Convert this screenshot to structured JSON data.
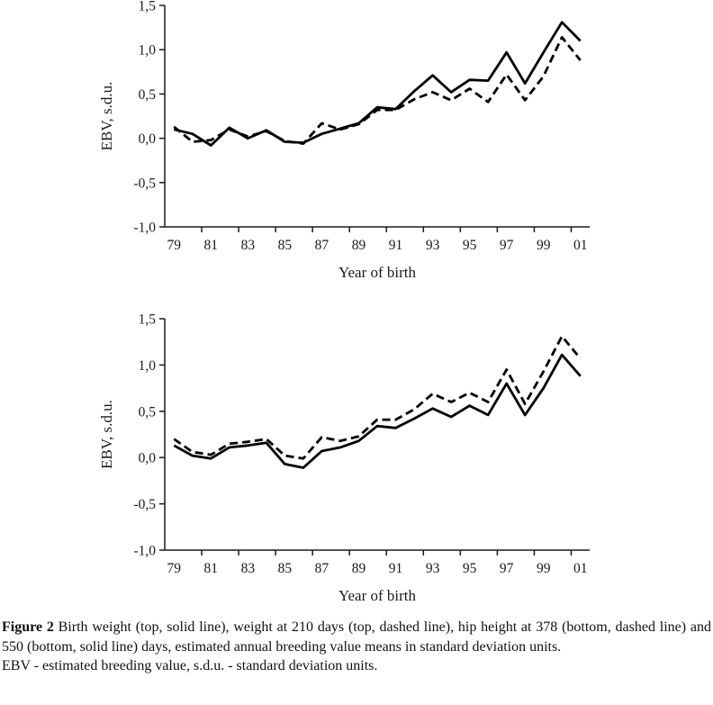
{
  "figure": {
    "caption_label": "Figure 2",
    "caption_text": "Birth weight (top, solid line), weight at 210 days (top, dashed line), hip height at 378 (bottom, dashed line) and 550 (bottom, solid line) days, estimated annual breeding value means in standard deviation units.",
    "footnote": "EBV - estimated breeding value, s.d.u. - standard deviation units."
  },
  "chart_data": [
    {
      "type": "line",
      "position": "top",
      "title": "",
      "xlabel": "Year of birth",
      "ylabel": "EBV, s.d.u.",
      "ylim": [
        -1.0,
        1.5
      ],
      "ytick_values": [
        1.5,
        1.0,
        0.5,
        0.0,
        -0.5,
        -1.0
      ],
      "ytick_labels": [
        "1,5",
        "1,0",
        "0,5",
        "0,0",
        "-0,5",
        "-1,0"
      ],
      "xtick_labels": [
        "79",
        "81",
        "83",
        "85",
        "87",
        "89",
        "91",
        "93",
        "95",
        "97",
        "99",
        "01"
      ],
      "x_years": [
        "79",
        "80",
        "81",
        "82",
        "83",
        "84",
        "85",
        "86",
        "87",
        "88",
        "89",
        "90",
        "91",
        "92",
        "93",
        "94",
        "95",
        "96",
        "97",
        "98",
        "99",
        "00",
        "01"
      ],
      "grid": false,
      "legend": false,
      "line_color": "#000000",
      "series": [
        {
          "name": "Weight at 210 days",
          "line_style": "dashed",
          "values": [
            0.13,
            -0.04,
            -0.02,
            0.1,
            0.02,
            0.08,
            -0.03,
            -0.06,
            0.17,
            0.1,
            0.16,
            0.32,
            0.32,
            0.44,
            0.52,
            0.43,
            0.56,
            0.41,
            0.72,
            0.43,
            0.7,
            1.14,
            0.88
          ]
        },
        {
          "name": "Birth weight",
          "line_style": "solid",
          "values": [
            0.1,
            0.05,
            -0.08,
            0.12,
            0.0,
            0.09,
            -0.04,
            -0.05,
            0.05,
            0.11,
            0.17,
            0.35,
            0.33,
            0.53,
            0.71,
            0.52,
            0.66,
            0.65,
            0.97,
            0.62,
            0.97,
            1.31,
            1.1
          ]
        }
      ]
    },
    {
      "type": "line",
      "position": "bottom",
      "title": "",
      "xlabel": "Year of birth",
      "ylabel": "EBV, s.d.u.",
      "ylim": [
        -1.0,
        1.5
      ],
      "ytick_values": [
        1.5,
        1.0,
        0.5,
        0.0,
        -0.5,
        -1.0
      ],
      "ytick_labels": [
        "1,5",
        "1,0",
        "0,5",
        "0,0",
        "-0,5",
        "-1,0"
      ],
      "xtick_labels": [
        "79",
        "81",
        "83",
        "85",
        "87",
        "89",
        "91",
        "93",
        "95",
        "97",
        "99",
        "01"
      ],
      "x_years": [
        "79",
        "80",
        "81",
        "82",
        "83",
        "84",
        "85",
        "86",
        "87",
        "88",
        "89",
        "90",
        "91",
        "92",
        "93",
        "94",
        "95",
        "96",
        "97",
        "98",
        "99",
        "00",
        "01"
      ],
      "grid": false,
      "legend": false,
      "line_color": "#000000",
      "series": [
        {
          "name": "Hip height at 550 days",
          "line_style": "solid",
          "values": [
            0.13,
            0.02,
            -0.01,
            0.11,
            0.13,
            0.16,
            -0.07,
            -0.11,
            0.07,
            0.11,
            0.18,
            0.34,
            0.32,
            0.42,
            0.53,
            0.44,
            0.56,
            0.46,
            0.8,
            0.46,
            0.75,
            1.11,
            0.88
          ]
        },
        {
          "name": "Hip height at 378 days",
          "line_style": "dashed",
          "values": [
            0.2,
            0.06,
            0.03,
            0.15,
            0.17,
            0.2,
            0.02,
            -0.01,
            0.22,
            0.18,
            0.23,
            0.41,
            0.41,
            0.52,
            0.69,
            0.6,
            0.7,
            0.6,
            0.95,
            0.58,
            0.93,
            1.31,
            1.07
          ]
        }
      ]
    }
  ]
}
